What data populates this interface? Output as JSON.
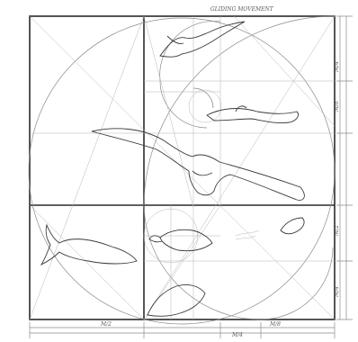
{
  "sheet": {
    "title": "GLIDING MOVEMENT",
    "bottom_labels": [
      "M/2",
      "M/8",
      "M/4"
    ],
    "right_labels": [
      "M/4",
      "M/8",
      "M/2",
      "M/4"
    ]
  },
  "colors": {
    "paper": "#ffffff",
    "frame": "#2b2b2b",
    "pencil": "#8a8a8a",
    "ink": "#3a3a3a"
  }
}
